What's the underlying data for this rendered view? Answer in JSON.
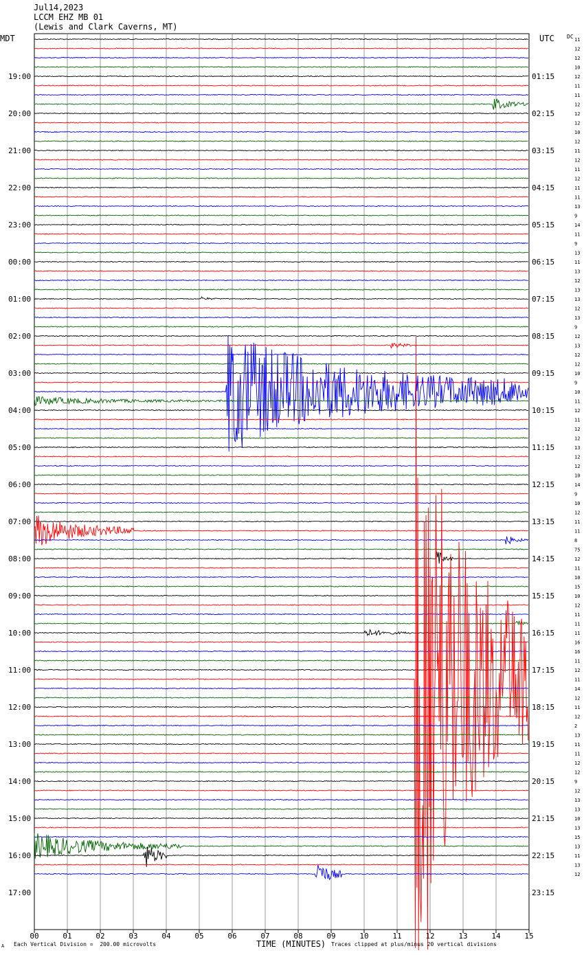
{
  "header": {
    "date": "Jul14,2023",
    "station": "LCCM EHZ MB 01",
    "location": "(Lewis and Clark Caverns, MT)"
  },
  "left_tz": "MDT",
  "right_tz": "UTC",
  "dc_label": "DC",
  "footer": {
    "scale": "Each Vertical Division =  200.00 microvolts",
    "xlabel": "TIME (MINUTES)",
    "clip": "Traces clipped at plus/minus 20 vertical divisions",
    "mark": "A"
  },
  "colors": {
    "black": "#000000",
    "red": "#ff0000",
    "blue": "#0000ff",
    "green": "#006400",
    "grid": "#808080"
  },
  "chart_data": {
    "type": "seismogram",
    "xlabel": "TIME (MINUTES)",
    "xlim": [
      0,
      15
    ],
    "x_ticks": [
      "00",
      "01",
      "02",
      "03",
      "04",
      "05",
      "06",
      "07",
      "08",
      "09",
      "10",
      "11",
      "12",
      "13",
      "14",
      "15"
    ],
    "trace_minutes": 15,
    "color_cycle": [
      "black",
      "red",
      "blue",
      "green"
    ],
    "left_hour_labels": [
      "19:00",
      "20:00",
      "21:00",
      "22:00",
      "23:00",
      "00:00",
      "01:00",
      "02:00",
      "03:00",
      "04:00",
      "05:00",
      "06:00",
      "07:00",
      "08:00",
      "09:00",
      "10:00",
      "11:00",
      "12:00",
      "13:00",
      "14:00",
      "15:00",
      "16:00",
      "17:00"
    ],
    "right_hour_labels": [
      "01:15",
      "02:15",
      "03:15",
      "04:15",
      "05:15",
      "06:15",
      "07:15",
      "08:15",
      "09:15",
      "10:15",
      "11:15",
      "12:15",
      "13:15",
      "14:15",
      "15:15",
      "16:15",
      "17:15",
      "18:15",
      "19:15",
      "20:15",
      "21:15",
      "22:15",
      "23:15"
    ],
    "dc_offsets": [
      "11",
      "12",
      "12",
      "10",
      "12",
      "11",
      "11",
      "12",
      "12",
      "12",
      "10",
      "12",
      "11",
      "12",
      "11",
      "12",
      "11",
      "11",
      "13",
      "9",
      "14",
      "11",
      "9",
      "13",
      "11",
      "13",
      "12",
      "13",
      "13",
      "12",
      "13",
      "9",
      "12",
      "13",
      "12",
      "12",
      "10",
      "9",
      "10",
      "11",
      "12",
      "11",
      "12",
      "12",
      "13",
      "12",
      "12",
      "10",
      "14",
      "9",
      "10",
      "12",
      "11",
      "11",
      "8",
      "75",
      "12",
      "11",
      "10",
      "15",
      "10",
      "12",
      "11",
      "11",
      "11",
      "16",
      "16",
      "11",
      "12",
      "11",
      "14",
      "12",
      "11",
      "12",
      "2",
      "13",
      "11",
      "11",
      "12",
      "12",
      "9",
      "12",
      "13",
      "13",
      "10",
      "13",
      "15",
      "13",
      "11",
      "13",
      "12"
    ],
    "events": [
      {
        "trace": 7,
        "start_min": 13.9,
        "end_min": 15.0,
        "amp_div": 0.8
      },
      {
        "trace": 28,
        "start_min": 5.0,
        "end_min": 5.7,
        "amp_div": 0.3
      },
      {
        "trace": 33,
        "start_min": 10.8,
        "end_min": 11.6,
        "amp_div": 0.5
      },
      {
        "trace": 38,
        "start_min": 5.8,
        "end_min": 15.0,
        "amp_div": 7.0
      },
      {
        "trace": 39,
        "start_min": 0.0,
        "end_min": 6.0,
        "amp_div": 0.5
      },
      {
        "trace": 56,
        "start_min": 12.2,
        "end_min": 12.7,
        "amp_div": 1.0
      },
      {
        "trace": 53,
        "start_min": 0.0,
        "end_min": 3.0,
        "amp_div": 2.0
      },
      {
        "trace": 54,
        "start_min": 14.3,
        "end_min": 15.0,
        "amp_div": 0.6
      },
      {
        "trace": 63,
        "start_min": 14.6,
        "end_min": 15.0,
        "amp_div": 0.6
      },
      {
        "trace": 64,
        "start_min": 10.0,
        "end_min": 11.5,
        "amp_div": 0.5
      },
      {
        "trace": 69,
        "start_min": 11.55,
        "end_min": 15.0,
        "amp_div": 40.0
      },
      {
        "trace": 87,
        "start_min": 0.0,
        "end_min": 4.5,
        "amp_div": 1.5
      },
      {
        "trace": 88,
        "start_min": 3.3,
        "end_min": 4.0,
        "amp_div": 2.0
      },
      {
        "trace": 90,
        "start_min": 8.5,
        "end_min": 9.3,
        "amp_div": 2.0
      }
    ]
  }
}
